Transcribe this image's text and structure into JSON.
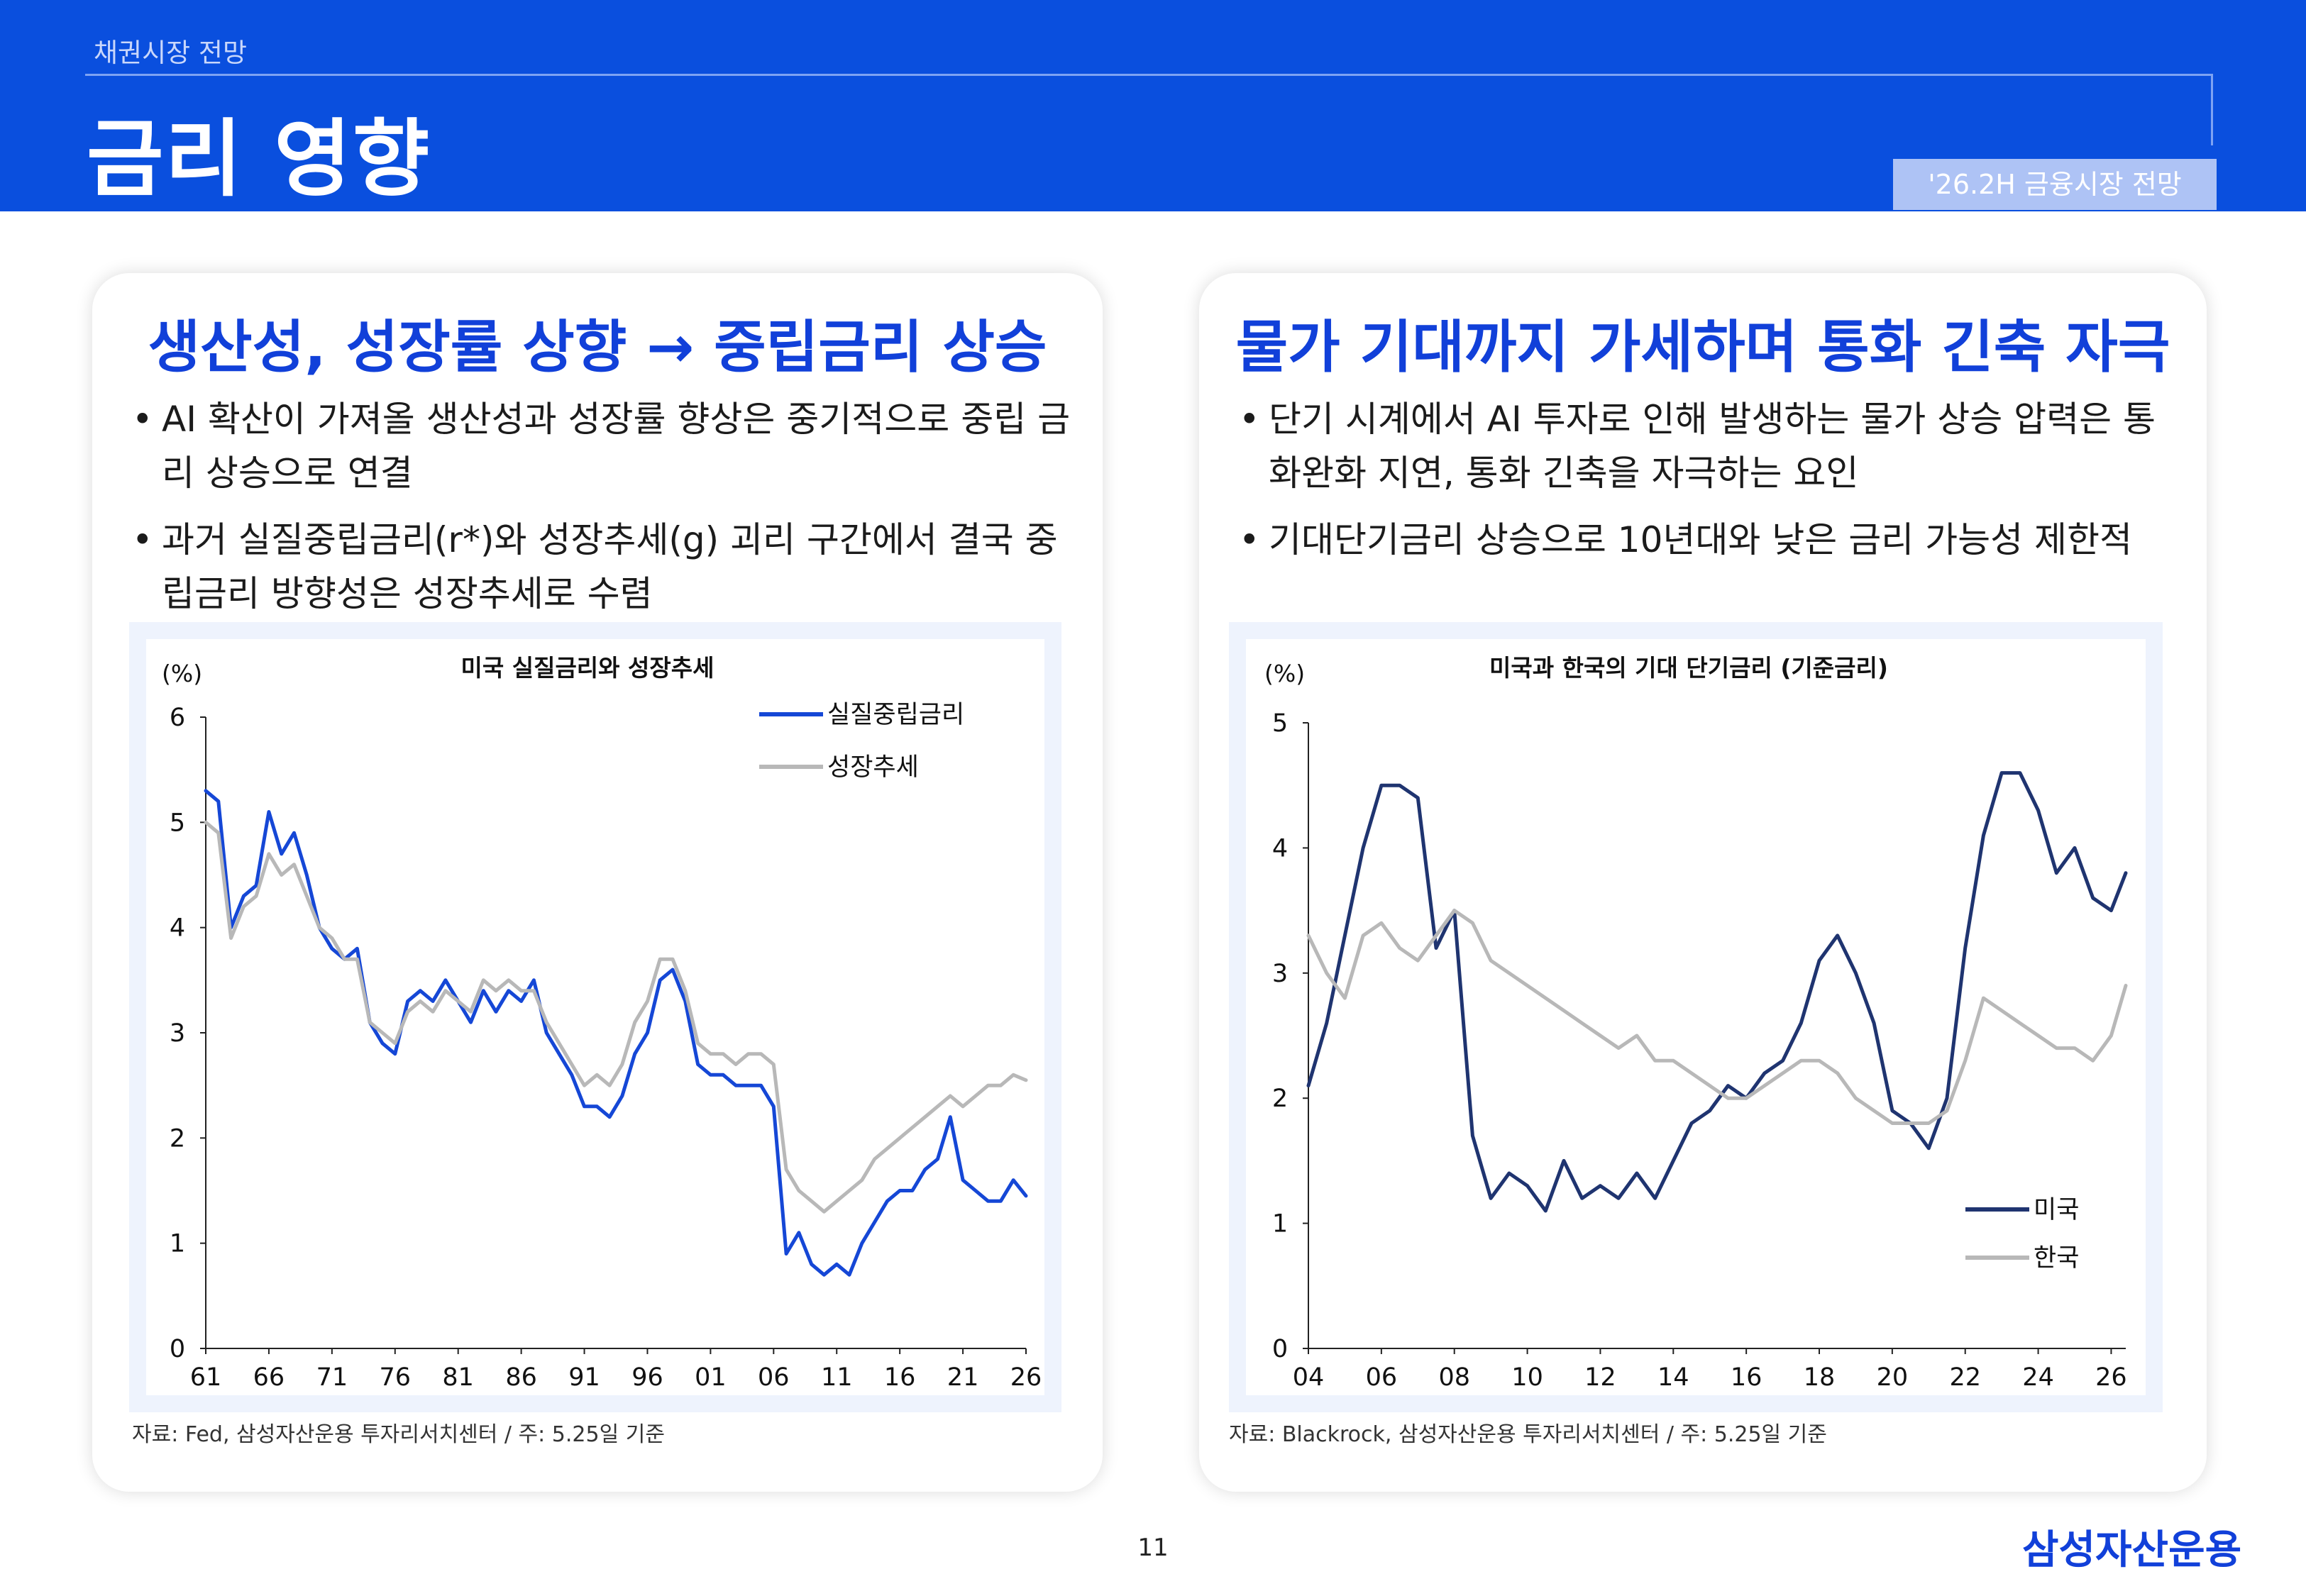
{
  "header": {
    "breadcrumb": "채권시장 전망",
    "title": "금리 영향",
    "report_tag": "'26.2H 금융시장 전망"
  },
  "left_panel": {
    "heading": "생산성, 성장률 상향 → 중립금리 상승",
    "bullets": [
      "AI 확산이 가져올 생산성과 성장률 향상은 중기적으로 중립 금리 상승으로 연결",
      "과거 실질중립금리(r*)와 성장추세(g) 괴리 구간에서 결국 중립금리 방향성은 성장추세로 수렴"
    ],
    "source": "자료: Fed, 삼성자산운용 투자리서치센터 / 주: 5.25일 기준"
  },
  "right_panel": {
    "heading": "물가 기대까지 가세하며 통화 긴축 자극",
    "bullets": [
      "단기 시계에서 AI 투자로 인해 발생하는 물가 상승 압력은 통화완화 지연, 통화 긴축을 자극하는 요인",
      "기대단기금리 상승으로 10년대와 낮은 금리 가능성 제한적"
    ],
    "source": "자료: Blackrock, 삼성자산운용 투자리서치센터 / 주: 5.25일 기준"
  },
  "footer": {
    "page_number": "11",
    "brand": "삼성자산운용"
  },
  "chart_data": [
    {
      "type": "line",
      "title": "미국 실질금리와 성장추세",
      "ylabel": "(%)",
      "xlabel": "",
      "x_tick_labels": [
        "61",
        "66",
        "71",
        "76",
        "81",
        "86",
        "91",
        "96",
        "01",
        "06",
        "11",
        "16",
        "21",
        "26"
      ],
      "x_tick_years": [
        1961,
        1966,
        1971,
        1976,
        1981,
        1986,
        1991,
        1996,
        2001,
        2006,
        2011,
        2016,
        2021,
        2026
      ],
      "xlim": [
        1961,
        2026
      ],
      "ylim": [
        0,
        6
      ],
      "y_ticks": [
        0,
        1,
        2,
        3,
        4,
        5,
        6
      ],
      "grid": false,
      "legend_position": "top-right",
      "series": [
        {
          "name": "실질중립금리",
          "color": "#1547d6",
          "x": [
            1961,
            1962,
            1963,
            1964,
            1965,
            1966,
            1967,
            1968,
            1969,
            1970,
            1971,
            1972,
            1973,
            1974,
            1975,
            1976,
            1977,
            1978,
            1979,
            1980,
            1981,
            1982,
            1983,
            1984,
            1985,
            1986,
            1987,
            1988,
            1989,
            1990,
            1991,
            1992,
            1993,
            1994,
            1995,
            1996,
            1997,
            1998,
            1999,
            2000,
            2001,
            2002,
            2003,
            2004,
            2005,
            2006,
            2007,
            2008,
            2009,
            2010,
            2011,
            2012,
            2013,
            2014,
            2015,
            2016,
            2017,
            2018,
            2019,
            2020,
            2021,
            2022,
            2023,
            2024,
            2025,
            2026
          ],
          "y": [
            5.3,
            5.2,
            4.0,
            4.3,
            4.4,
            5.1,
            4.7,
            4.9,
            4.5,
            4.0,
            3.8,
            3.7,
            3.8,
            3.1,
            2.9,
            2.8,
            3.3,
            3.4,
            3.3,
            3.5,
            3.3,
            3.1,
            3.4,
            3.2,
            3.4,
            3.3,
            3.5,
            3.0,
            2.8,
            2.6,
            2.3,
            2.3,
            2.2,
            2.4,
            2.8,
            3.0,
            3.5,
            3.6,
            3.3,
            2.7,
            2.6,
            2.6,
            2.5,
            2.5,
            2.5,
            2.3,
            0.9,
            1.1,
            0.8,
            0.7,
            0.8,
            0.7,
            1.0,
            1.2,
            1.4,
            1.5,
            1.5,
            1.7,
            1.8,
            2.2,
            1.6,
            1.5,
            1.4,
            1.4,
            1.6,
            1.45
          ]
        },
        {
          "name": "성장추세",
          "color": "#b8b8b8",
          "x": [
            1961,
            1962,
            1963,
            1964,
            1965,
            1966,
            1967,
            1968,
            1969,
            1970,
            1971,
            1972,
            1973,
            1974,
            1975,
            1976,
            1977,
            1978,
            1979,
            1980,
            1981,
            1982,
            1983,
            1984,
            1985,
            1986,
            1987,
            1988,
            1989,
            1990,
            1991,
            1992,
            1993,
            1994,
            1995,
            1996,
            1997,
            1998,
            1999,
            2000,
            2001,
            2002,
            2003,
            2004,
            2005,
            2006,
            2007,
            2008,
            2009,
            2010,
            2011,
            2012,
            2013,
            2014,
            2015,
            2016,
            2017,
            2018,
            2019,
            2020,
            2021,
            2022,
            2023,
            2024,
            2025,
            2026
          ],
          "y": [
            5.0,
            4.9,
            3.9,
            4.2,
            4.3,
            4.7,
            4.5,
            4.6,
            4.3,
            4.0,
            3.9,
            3.7,
            3.7,
            3.1,
            3.0,
            2.9,
            3.2,
            3.3,
            3.2,
            3.4,
            3.3,
            3.2,
            3.5,
            3.4,
            3.5,
            3.4,
            3.4,
            3.1,
            2.9,
            2.7,
            2.5,
            2.6,
            2.5,
            2.7,
            3.1,
            3.3,
            3.7,
            3.7,
            3.4,
            2.9,
            2.8,
            2.8,
            2.7,
            2.8,
            2.8,
            2.7,
            1.7,
            1.5,
            1.4,
            1.3,
            1.4,
            1.5,
            1.6,
            1.8,
            1.9,
            2.0,
            2.1,
            2.2,
            2.3,
            2.4,
            2.3,
            2.4,
            2.5,
            2.5,
            2.6,
            2.55
          ]
        }
      ]
    },
    {
      "type": "line",
      "title": "미국과 한국의 기대 단기금리 (기준금리)",
      "ylabel": "(%)",
      "xlabel": "",
      "x_tick_labels": [
        "04",
        "06",
        "08",
        "10",
        "12",
        "14",
        "16",
        "18",
        "20",
        "22",
        "24",
        "26"
      ],
      "x_tick_years": [
        2004,
        2006,
        2008,
        2010,
        2012,
        2014,
        2016,
        2018,
        2020,
        2022,
        2024,
        2026
      ],
      "xlim": [
        2004,
        2026.4
      ],
      "ylim": [
        0,
        5
      ],
      "y_ticks": [
        0,
        1,
        2,
        3,
        4,
        5
      ],
      "grid": false,
      "legend_position": "bottom-right",
      "series": [
        {
          "name": "미국",
          "color": "#1f3470",
          "x": [
            2004,
            2004.5,
            2005,
            2005.5,
            2006,
            2006.5,
            2007,
            2007.5,
            2008,
            2008.5,
            2009,
            2009.5,
            2010,
            2010.5,
            2011,
            2011.5,
            2012,
            2012.5,
            2013,
            2013.5,
            2014,
            2014.5,
            2015,
            2015.5,
            2016,
            2016.5,
            2017,
            2017.5,
            2018,
            2018.5,
            2019,
            2019.5,
            2020,
            2020.5,
            2021,
            2021.5,
            2022,
            2022.5,
            2023,
            2023.5,
            2024,
            2024.5,
            2025,
            2025.5,
            2026,
            2026.4
          ],
          "y": [
            2.1,
            2.6,
            3.3,
            4.0,
            4.5,
            4.5,
            4.4,
            3.2,
            3.5,
            1.7,
            1.2,
            1.4,
            1.3,
            1.1,
            1.5,
            1.2,
            1.3,
            1.2,
            1.4,
            1.2,
            1.5,
            1.8,
            1.9,
            2.1,
            2.0,
            2.2,
            2.3,
            2.6,
            3.1,
            3.3,
            3.0,
            2.6,
            1.9,
            1.8,
            1.6,
            2.0,
            3.2,
            4.1,
            4.6,
            4.6,
            4.3,
            3.8,
            4.0,
            3.6,
            3.5,
            3.8
          ]
        },
        {
          "name": "한국",
          "color": "#b8b8b8",
          "x": [
            2004,
            2004.5,
            2005,
            2005.5,
            2006,
            2006.5,
            2007,
            2007.5,
            2008,
            2008.5,
            2009,
            2009.5,
            2010,
            2010.5,
            2011,
            2011.5,
            2012,
            2012.5,
            2013,
            2013.5,
            2014,
            2014.5,
            2015,
            2015.5,
            2016,
            2016.5,
            2017,
            2017.5,
            2018,
            2018.5,
            2019,
            2019.5,
            2020,
            2020.5,
            2021,
            2021.5,
            2022,
            2022.5,
            2023,
            2023.5,
            2024,
            2024.5,
            2025,
            2025.5,
            2026,
            2026.4
          ],
          "y": [
            3.3,
            3.0,
            2.8,
            3.3,
            3.4,
            3.2,
            3.1,
            3.3,
            3.5,
            3.4,
            3.1,
            3.0,
            2.9,
            2.8,
            2.7,
            2.6,
            2.5,
            2.4,
            2.5,
            2.3,
            2.3,
            2.2,
            2.1,
            2.0,
            2.0,
            2.1,
            2.2,
            2.3,
            2.3,
            2.2,
            2.0,
            1.9,
            1.8,
            1.8,
            1.8,
            1.9,
            2.3,
            2.8,
            2.7,
            2.6,
            2.5,
            2.4,
            2.4,
            2.3,
            2.5,
            2.9
          ]
        }
      ]
    }
  ]
}
